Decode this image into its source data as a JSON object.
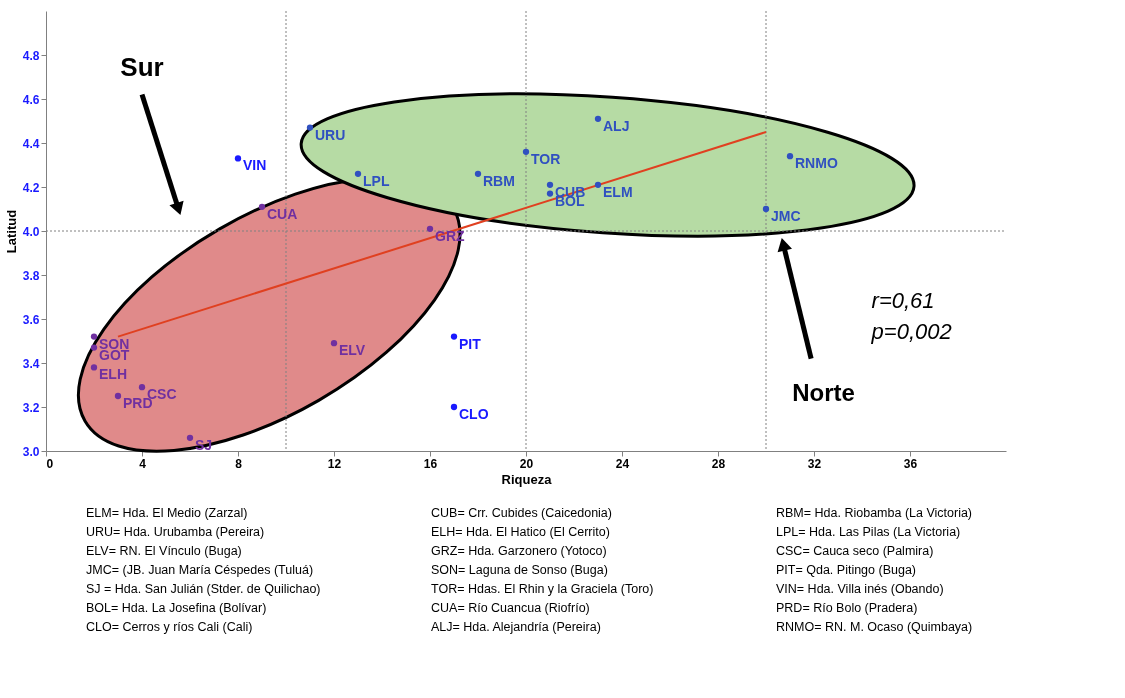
{
  "chart_data": {
    "type": "scatter",
    "xlabel": "Riqueza",
    "ylabel": "Latitud",
    "xlim": [
      0,
      40
    ],
    "xticks": [
      0,
      4,
      8,
      12,
      16,
      20,
      24,
      28,
      32,
      36
    ],
    "ylim": [
      3.0,
      5.0
    ],
    "yticks": [
      {
        "value": 3,
        "label": "3.0"
      },
      3.2,
      3.4,
      3.6,
      3.8,
      {
        "value": 4,
        "label": "4.0"
      },
      4.2,
      4.4,
      4.6,
      4.8
    ],
    "grid": false,
    "marker": "circle",
    "series": [
      {
        "color": "#7030a0",
        "x": [
          2,
          2,
          2,
          4,
          3,
          6,
          12,
          9,
          16
        ],
        "values": [
          3.52,
          3.47,
          3.38,
          3.29,
          3.25,
          3.06,
          3.49,
          4.11,
          4.01
        ],
        "value_labels": [
          "SON",
          "GOT",
          "ELH",
          "CSC",
          "PRD",
          "SJ",
          "ELV",
          "CUA",
          "GRZ"
        ]
      },
      {
        "color": "#3050c0",
        "x": [
          11,
          13,
          18,
          20,
          23,
          21,
          21,
          23,
          31,
          30
        ],
        "values": [
          4.47,
          4.26,
          4.26,
          4.36,
          4.51,
          4.21,
          4.17,
          4.21,
          4.34,
          4.1
        ],
        "value_labels": [
          "URU",
          "LPL",
          "RBM",
          "TOR",
          "ALJ",
          "CUB",
          "BOL",
          "ELM",
          "RNMO",
          "JMC"
        ]
      },
      {
        "color": "#1a1aff",
        "x": [
          8,
          17,
          17
        ],
        "values": [
          4.33,
          3.52,
          3.2
        ],
        "value_labels": [
          "VIN",
          "PIT",
          "CLO"
        ]
      },
      {
        "type": "line",
        "marker": "none",
        "color": "#e04020",
        "x": [
          3,
          30
        ],
        "values": [
          3.52,
          4.45
        ]
      }
    ],
    "ref_lines": [
      {
        "axis": "x",
        "value": 10,
        "color": "#808080",
        "line_style": "dotted"
      },
      {
        "axis": "x",
        "value": 20,
        "color": "#808080",
        "line_style": "dotted"
      },
      {
        "axis": "x",
        "value": 30,
        "color": "#808080",
        "line_style": "dotted"
      },
      {
        "axis": "y",
        "value": 4.0,
        "color": "#808080",
        "line_style": "dotted"
      }
    ],
    "annotations": [
      "Sur",
      "Norte",
      "r=0,61",
      "p=0,002",
      "ELM= Hda. El Medio (Zarzal)",
      "CUB= Crr. Cubides (Caicedonia)",
      "RBM= Hda. Riobamba (La Victoria)",
      "URU= Hda. Urubamba (Pereira)",
      "ELH= Hda. El Hatico (El Cerrito)",
      "LPL= Hda. Las Pilas (La Victoria)",
      "ELV= RN. El Vínculo (Buga)",
      "GRZ= Hda. Garzonero (Yotoco)",
      "CSC= Cauca seco (Palmira)",
      "JMC= (JB. Juan María Céspedes (Tuluá)",
      "SON= Laguna de Sonso (Buga)",
      "PIT= Qda. Pitingo (Buga)",
      "SJ = Hda. San Julián (Stder. de Quilichao)",
      "TOR=  Hdas. El Rhin y la Graciela (Toro)",
      "VIN= Hda. Villa inés (Obando)",
      "BOL= Hda. La Josefina (Bolívar)",
      "CUA=  Río Cuancua (Riofrío)",
      "PRD= Río Bolo (Pradera)",
      "CLO=  Cerros y ríos Cali (Cali)",
      "ALJ= Hda. Alejandría (Pereira)",
      "RNMO= RN. M. Ocaso (Quimbaya)"
    ]
  }
}
